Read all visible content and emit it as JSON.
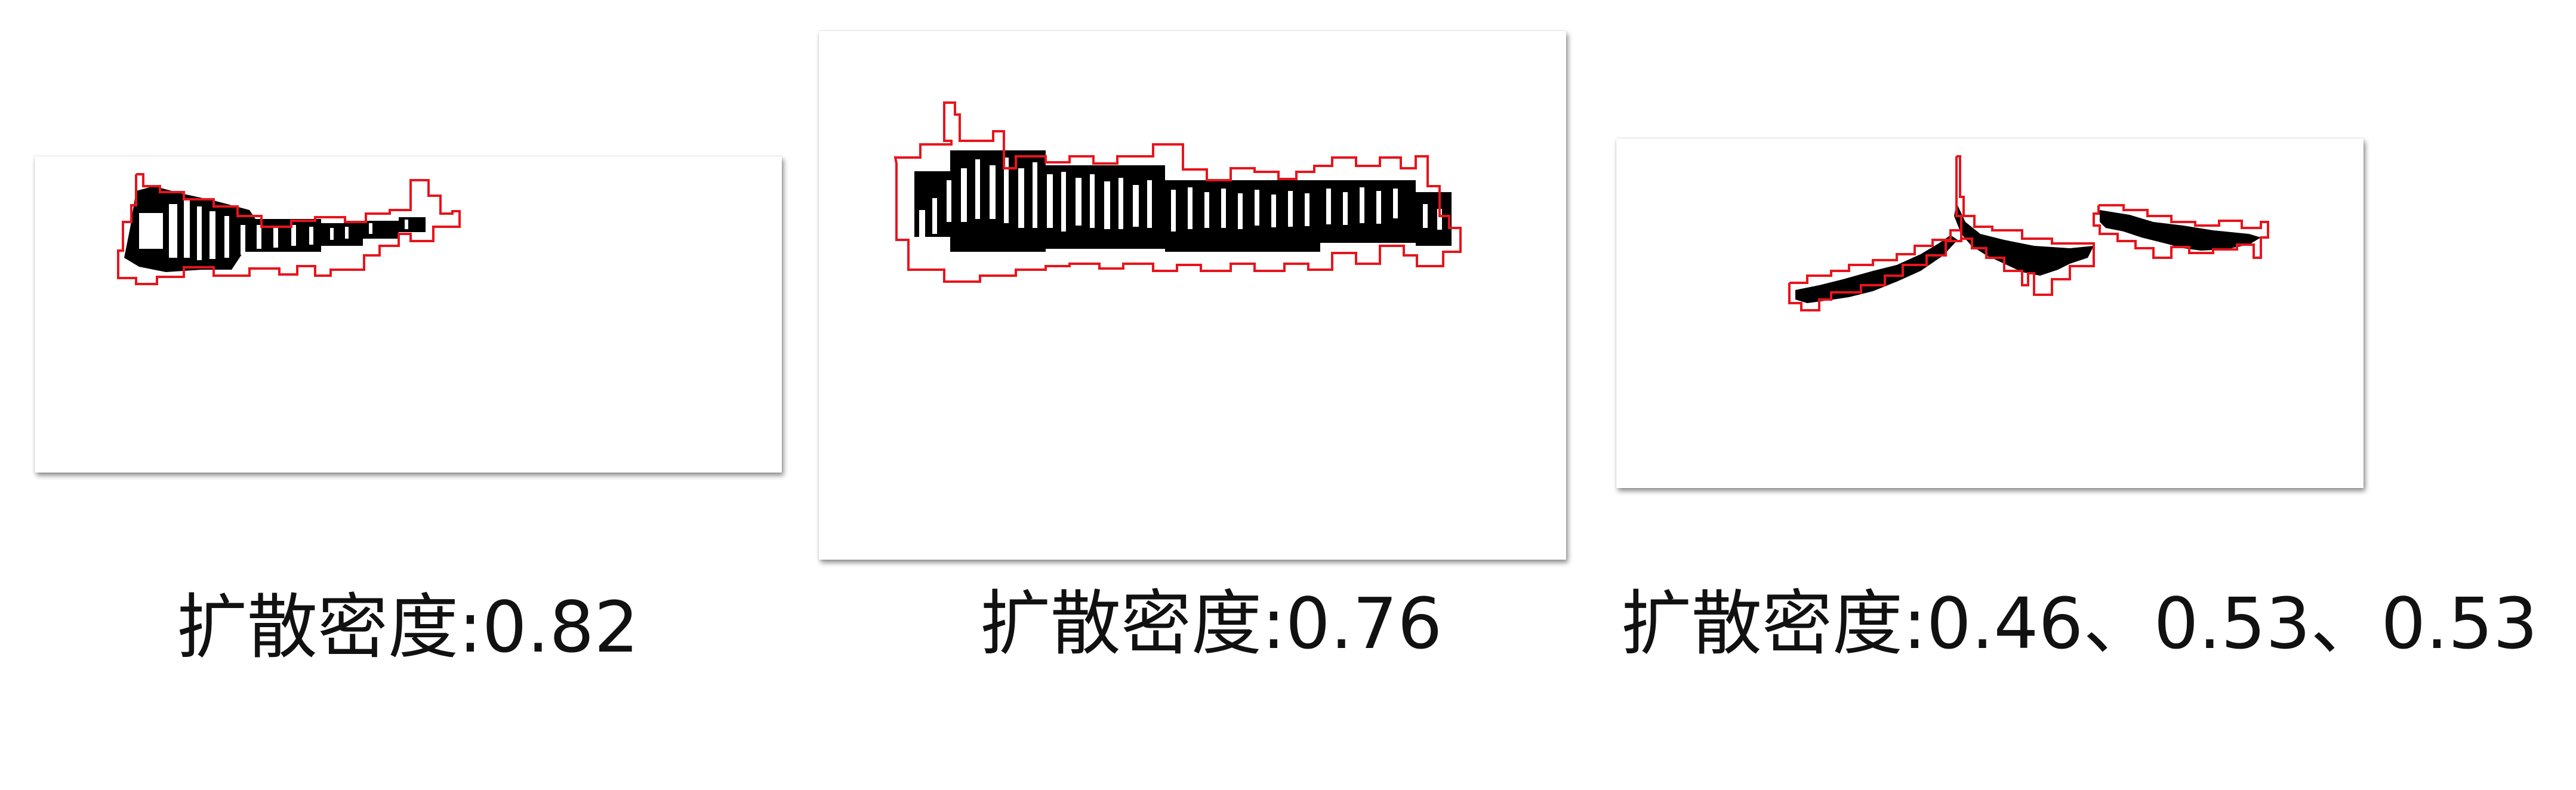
{
  "figure": {
    "background": "#ffffff",
    "accent_color": "#e8141c",
    "pixel_color": "#000000",
    "panels": [
      {
        "id": "panel-1",
        "caption": "扩散密度:0.82",
        "diffusion_density": [
          0.82
        ]
      },
      {
        "id": "panel-2",
        "caption": "扩散密度:0.76",
        "diffusion_density": [
          0.76
        ]
      },
      {
        "id": "panel-3",
        "caption": "扩散密度:0.46、0.53、0.53",
        "diffusion_density": [
          0.46,
          0.53,
          0.53
        ]
      }
    ]
  }
}
